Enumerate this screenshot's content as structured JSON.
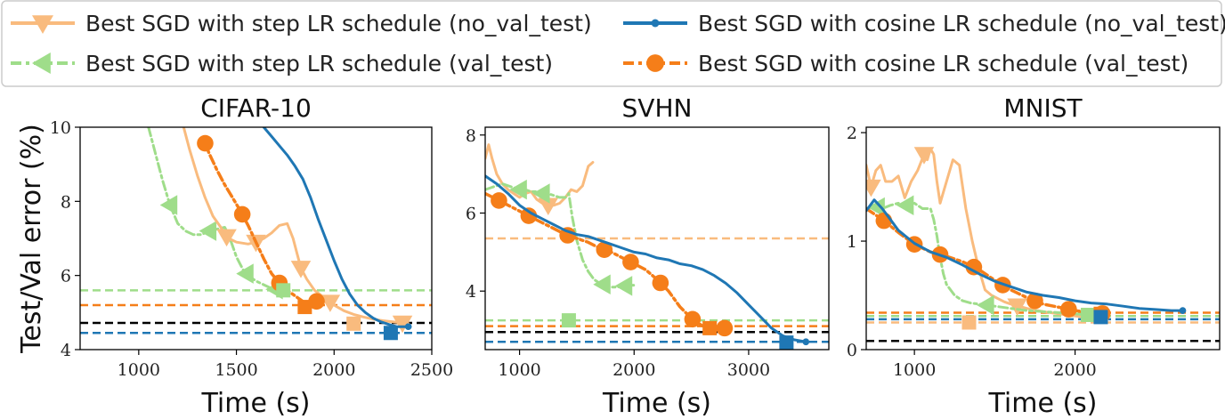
{
  "chart_data": {
    "type": "line",
    "colors": {
      "step_no_val": "#f9bb7e",
      "step_val": "#9fdd8a",
      "cos_no_val": "#1f77b4",
      "cos_val": "#f57e19",
      "reference": "#000000"
    },
    "legend": {
      "placement": "top",
      "entries": [
        {
          "key": "step_no_val",
          "label": "Best SGD with step LR schedule (no_val_test)"
        },
        {
          "key": "cos_no_val",
          "label": "Best SGD with cosine LR schedule (no_val_test)"
        },
        {
          "key": "step_val",
          "label": "Best SGD with step LR schedule (val_test)"
        },
        {
          "key": "cos_val",
          "label": "Best SGD with cosine LR schedule (val_test)"
        }
      ]
    },
    "ylabel": "Test/Val error (%)",
    "xlabel": "Time (s)",
    "panels": [
      {
        "title": "CIFAR-10",
        "xlim": [
          700,
          2500
        ],
        "ylim": [
          4,
          10
        ],
        "xticks": [
          1000,
          1500,
          2000,
          2500
        ],
        "yticks": [
          4,
          6,
          8,
          10
        ],
        "hlines": [
          {
            "key": "step_val",
            "y": 5.6
          },
          {
            "key": "cos_val",
            "y": 5.2
          },
          {
            "key": "reference",
            "y": 4.72
          },
          {
            "key": "cos_no_val",
            "y": 4.45
          }
        ],
        "squares": [
          {
            "key": "step_val",
            "x": 1740,
            "y": 5.6
          },
          {
            "key": "cos_val",
            "x": 1850,
            "y": 5.15
          },
          {
            "key": "step_no_val",
            "x": 2100,
            "y": 4.7
          },
          {
            "key": "cos_no_val",
            "x": 2290,
            "y": 4.45
          }
        ],
        "series": [
          {
            "key": "step_val",
            "marker": "tri-left",
            "x": [
              1050,
              1080,
              1120,
              1160,
              1200,
              1240,
              1280,
              1320,
              1360,
              1400,
              1440,
              1460,
              1480,
              1500,
              1520,
              1540,
              1560,
              1600,
              1640,
              1680,
              1720
            ],
            "y": [
              10.0,
              9.4,
              8.6,
              7.9,
              7.4,
              7.2,
              7.1,
              7.1,
              7.2,
              7.25,
              7.3,
              7.1,
              6.8,
              6.5,
              6.3,
              6.1,
              6.0,
              5.85,
              5.75,
              5.65,
              5.6
            ],
            "markers_x": [
              1160,
              1360,
              1550,
              1700
            ]
          },
          {
            "key": "step_no_val",
            "marker": "tri-down",
            "x": [
              1230,
              1260,
              1300,
              1340,
              1380,
              1420,
              1440,
              1460,
              1500,
              1560,
              1600,
              1640,
              1680,
              1720,
              1760,
              1790,
              1810,
              1830,
              1860,
              1900,
              1950,
              2000,
              2050,
              2100,
              2150,
              2200,
              2250,
              2300,
              2350,
              2380
            ],
            "y": [
              10.0,
              9.4,
              8.7,
              8.1,
              7.6,
              7.3,
              7.1,
              7.0,
              6.9,
              6.85,
              6.9,
              7.0,
              7.15,
              7.35,
              7.4,
              7.0,
              6.6,
              6.2,
              5.9,
              5.6,
              5.4,
              5.2,
              5.05,
              4.95,
              4.88,
              4.82,
              4.78,
              4.75,
              4.72,
              4.7
            ],
            "markers_x": [
              1450,
              1600,
              1830,
              1980,
              2350
            ]
          },
          {
            "key": "cos_val",
            "marker": "circle",
            "x": [
              1330,
              1360,
              1400,
              1440,
              1480,
              1520,
              1560,
              1600,
              1640,
              1680,
              1720,
              1760,
              1800,
              1840,
              1880,
              1910
            ],
            "y": [
              9.7,
              9.3,
              8.85,
              8.45,
              8.1,
              7.75,
              7.35,
              6.9,
              6.45,
              6.05,
              5.8,
              5.6,
              5.45,
              5.3,
              5.2,
              5.3
            ],
            "markers_x": [
              1340,
              1530,
              1720,
              1910
            ]
          },
          {
            "key": "cos_no_val",
            "marker": "dot",
            "x": [
              1640,
              1680,
              1720,
              1760,
              1800,
              1840,
              1880,
              1920,
              1960,
              2000,
              2040,
              2080,
              2120,
              2160,
              2200,
              2240,
              2280,
              2320,
              2360,
              2390
            ],
            "y": [
              10.0,
              9.75,
              9.5,
              9.25,
              8.95,
              8.6,
              8.1,
              7.5,
              6.95,
              6.4,
              5.9,
              5.5,
              5.2,
              5.0,
              4.85,
              4.75,
              4.68,
              4.62,
              4.62,
              4.62
            ],
            "markers_x": [
              2380
            ]
          }
        ]
      },
      {
        "title": "SVHN",
        "xlim": [
          700,
          3700
        ],
        "ylim": [
          2.5,
          8.2
        ],
        "xticks": [
          1000,
          2000,
          3000
        ],
        "yticks": [
          4,
          6,
          8
        ],
        "hlines": [
          {
            "key": "step_no_val",
            "y": 5.35
          },
          {
            "key": "step_val",
            "y": 3.25
          },
          {
            "key": "cos_val",
            "y": 3.1
          },
          {
            "key": "reference",
            "y": 2.95
          },
          {
            "key": "cos_no_val",
            "y": 2.7
          }
        ],
        "squares": [
          {
            "key": "step_val",
            "x": 1430,
            "y": 3.25
          },
          {
            "key": "cos_val",
            "x": 2660,
            "y": 3.05
          },
          {
            "key": "cos_no_val",
            "x": 3330,
            "y": 2.68
          }
        ],
        "series": [
          {
            "key": "step_no_val",
            "marker": "tri-down",
            "x": [
              700,
              730,
              760,
              800,
              850,
              900,
              950,
              1000,
              1050,
              1100,
              1150,
              1200,
              1250,
              1300,
              1350,
              1400,
              1450,
              1500,
              1550,
              1600,
              1640
            ],
            "y": [
              7.4,
              7.75,
              7.4,
              7.0,
              6.75,
              6.6,
              6.5,
              6.4,
              6.5,
              6.55,
              6.35,
              6.25,
              6.2,
              6.2,
              6.25,
              6.4,
              6.6,
              6.55,
              6.7,
              7.2,
              7.3
            ],
            "markers_x": [
              1250
            ]
          },
          {
            "key": "step_val",
            "marker": "tri-left",
            "x": [
              700,
              750,
              800,
              850,
              900,
              950,
              1000,
              1050,
              1100,
              1150,
              1200,
              1250,
              1300,
              1350,
              1400,
              1430,
              1460,
              1500,
              1550,
              1600,
              1650,
              1700,
              1750,
              1800,
              1850,
              1900,
              1950,
              2000
            ],
            "y": [
              6.6,
              6.65,
              6.7,
              6.75,
              6.7,
              6.65,
              6.6,
              6.6,
              6.55,
              6.55,
              6.5,
              6.5,
              6.45,
              6.4,
              6.4,
              6.5,
              5.9,
              5.3,
              4.8,
              4.5,
              4.3,
              4.2,
              4.15,
              4.1,
              4.1,
              4.12,
              4.15,
              4.15
            ],
            "markers_x": [
              1000,
              1200,
              1730,
              1920
            ]
          },
          {
            "key": "cos_val",
            "marker": "circle",
            "x": [
              700,
              800,
              900,
              1000,
              1100,
              1200,
              1300,
              1400,
              1500,
              1600,
              1700,
              1800,
              1900,
              2000,
              2100,
              2200,
              2300,
              2400,
              2500,
              2600,
              2700,
              2780
            ],
            "y": [
              6.5,
              6.35,
              6.2,
              6.05,
              5.9,
              5.75,
              5.6,
              5.45,
              5.35,
              5.25,
              5.1,
              5.0,
              4.85,
              4.7,
              4.55,
              4.3,
              4.0,
              3.6,
              3.3,
              3.1,
              3.05,
              3.05
            ],
            "markers_x": [
              820,
              1080,
              1420,
              1740,
              1970,
              2230,
              2510,
              2790
            ]
          },
          {
            "key": "cos_no_val",
            "marker": "dot",
            "x": [
              700,
              800,
              900,
              1000,
              1100,
              1200,
              1300,
              1400,
              1500,
              1600,
              1700,
              1800,
              1900,
              2000,
              2100,
              2200,
              2300,
              2400,
              2500,
              2600,
              2700,
              2800,
              2900,
              3000,
              3100,
              3200,
              3300,
              3400,
              3500
            ],
            "y": [
              6.95,
              6.75,
              6.5,
              6.2,
              6.0,
              5.85,
              5.7,
              5.55,
              5.45,
              5.4,
              5.3,
              5.2,
              5.1,
              5.0,
              4.95,
              4.85,
              4.8,
              4.7,
              4.65,
              4.55,
              4.4,
              4.2,
              3.95,
              3.65,
              3.35,
              3.05,
              2.85,
              2.75,
              2.7
            ],
            "markers_x": [
              3500
            ]
          }
        ]
      },
      {
        "title": "MNIST",
        "xlim": [
          700,
          2900
        ],
        "ylim": [
          0,
          2.05
        ],
        "xticks": [
          1000,
          2000
        ],
        "yticks": [
          0,
          1,
          2
        ],
        "hlines": [
          {
            "key": "cos_val",
            "y": 0.34
          },
          {
            "key": "step_val",
            "y": 0.31
          },
          {
            "key": "cos_no_val",
            "y": 0.28
          },
          {
            "key": "step_no_val",
            "y": 0.25
          },
          {
            "key": "reference",
            "y": 0.08
          }
        ],
        "squares": [
          {
            "key": "step_no_val",
            "x": 1340,
            "y": 0.25
          },
          {
            "key": "step_val",
            "x": 2080,
            "y": 0.32
          },
          {
            "key": "cos_val",
            "x": 2160,
            "y": 0.33
          },
          {
            "key": "cos_no_val",
            "x": 2160,
            "y": 0.3
          }
        ],
        "series": [
          {
            "key": "step_no_val",
            "marker": "tri-down",
            "x": [
              700,
              730,
              760,
              790,
              820,
              860,
              900,
              940,
              980,
              1020,
              1060,
              1080,
              1100,
              1120,
              1140,
              1160,
              1200,
              1240,
              1280,
              1320,
              1360,
              1400,
              1440,
              1480,
              1520,
              1560,
              1600,
              1700,
              1800,
              1900,
              2000,
              2100,
              2200
            ],
            "y": [
              1.7,
              1.5,
              1.65,
              1.7,
              1.55,
              1.55,
              1.6,
              1.4,
              1.55,
              1.65,
              1.8,
              1.75,
              1.85,
              1.8,
              1.55,
              1.35,
              1.55,
              1.75,
              1.7,
              1.3,
              1.0,
              0.75,
              0.55,
              0.5,
              0.47,
              0.44,
              0.42,
              0.38,
              0.35,
              0.33,
              0.31,
              0.29,
              0.28
            ],
            "markers_x": [
              730,
              1060,
              1640
            ]
          },
          {
            "key": "step_val",
            "marker": "tri-left",
            "x": [
              700,
              750,
              800,
              850,
              900,
              950,
              1000,
              1050,
              1100,
              1120,
              1140,
              1160,
              1180,
              1200,
              1250,
              1300,
              1350,
              1400,
              1450,
              1500,
              1600,
              1700,
              1800,
              1900,
              2000,
              2080
            ],
            "y": [
              1.3,
              1.32,
              1.3,
              1.33,
              1.35,
              1.33,
              1.35,
              1.3,
              1.3,
              1.2,
              1.05,
              0.85,
              0.7,
              0.6,
              0.5,
              0.45,
              0.43,
              0.42,
              0.41,
              0.4,
              0.38,
              0.36,
              0.35,
              0.34,
              0.33,
              0.32
            ],
            "markers_x": [
              770,
              950,
              1450
            ]
          },
          {
            "key": "cos_val",
            "marker": "circle",
            "x": [
              700,
              800,
              900,
              1000,
              1100,
              1200,
              1300,
              1400,
              1500,
              1600,
              1700,
              1800,
              1900,
              2000,
              2100,
              2200
            ],
            "y": [
              1.3,
              1.2,
              1.08,
              0.97,
              0.9,
              0.86,
              0.81,
              0.74,
              0.64,
              0.55,
              0.48,
              0.42,
              0.39,
              0.36,
              0.34,
              0.33
            ],
            "markers_x": [
              810,
              1000,
              1160,
              1370,
              1550,
              1750,
              1960,
              2170
            ]
          },
          {
            "key": "cos_no_val",
            "marker": "dot",
            "x": [
              700,
              750,
              800,
              850,
              900,
              1000,
              1100,
              1200,
              1300,
              1400,
              1500,
              1600,
              1700,
              1800,
              1900,
              2000,
              2100,
              2200,
              2300,
              2400,
              2500,
              2600,
              2670
            ],
            "y": [
              1.28,
              1.38,
              1.3,
              1.2,
              1.1,
              0.98,
              0.9,
              0.85,
              0.78,
              0.7,
              0.63,
              0.58,
              0.53,
              0.5,
              0.48,
              0.45,
              0.43,
              0.42,
              0.4,
              0.38,
              0.37,
              0.36,
              0.36
            ],
            "markers_x": [
              2670
            ]
          }
        ]
      }
    ]
  }
}
